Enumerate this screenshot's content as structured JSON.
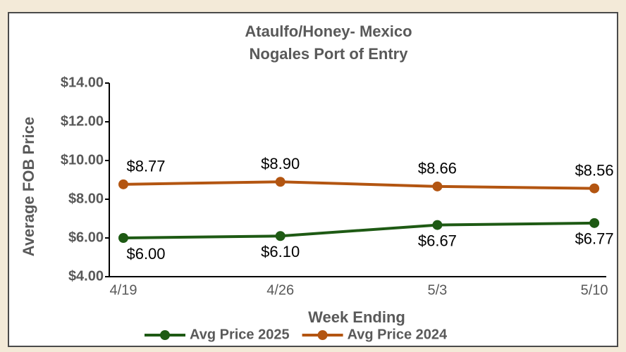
{
  "chart_data": {
    "type": "line",
    "title": "Ataulfo/Honey- Mexico",
    "subtitle": "Nogales Port of Entry",
    "x_label": "Week Ending",
    "y_label": "Average FOB Price",
    "categories": [
      "4/19",
      "4/26",
      "5/3",
      "5/10"
    ],
    "series": [
      {
        "name": "Avg Price 2025",
        "color": "#1e5a14",
        "values": [
          6.0,
          6.1,
          6.67,
          6.77
        ],
        "value_labels": [
          "$6.00",
          "$6.10",
          "$6.67",
          "$6.77"
        ]
      },
      {
        "name": "Avg Price 2024",
        "color": "#b35511",
        "values": [
          8.77,
          8.9,
          8.66,
          8.56
        ],
        "value_labels": [
          "$8.77",
          "$8.90",
          "$8.66",
          "$8.56"
        ]
      }
    ],
    "ylim": [
      4,
      14
    ],
    "yticks": [
      {
        "value": 4,
        "label": "$4.00"
      },
      {
        "value": 6,
        "label": "$6.00"
      },
      {
        "value": 8,
        "label": "$8.00"
      },
      {
        "value": 10,
        "label": "$10.00"
      },
      {
        "value": 12,
        "label": "$12.00"
      },
      {
        "value": 14,
        "label": "$14.00"
      }
    ],
    "legend": "bottom"
  }
}
